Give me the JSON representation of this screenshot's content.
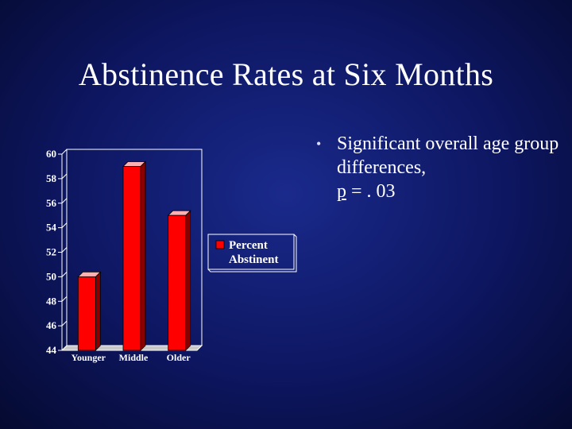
{
  "slide": {
    "title": "Abstinence Rates at Six Months",
    "bullet": {
      "text_before": "Significant overall age group differences,",
      "p_symbol": "p",
      "text_after": " = . 03"
    }
  },
  "chart_data": {
    "type": "bar",
    "categories": [
      "Younger",
      "Middle",
      "Older"
    ],
    "series": [
      {
        "name": "Percent Abstinent",
        "values": [
          50,
          59,
          55
        ],
        "color": "#ff0000"
      }
    ],
    "ylim": [
      44,
      60
    ],
    "yticks": [
      "44",
      "46",
      "48",
      "50",
      "52",
      "54",
      "56",
      "58",
      "60"
    ],
    "legend": {
      "position": "right",
      "labels": [
        "Percent",
        "Abstinent"
      ]
    },
    "grid": false
  }
}
